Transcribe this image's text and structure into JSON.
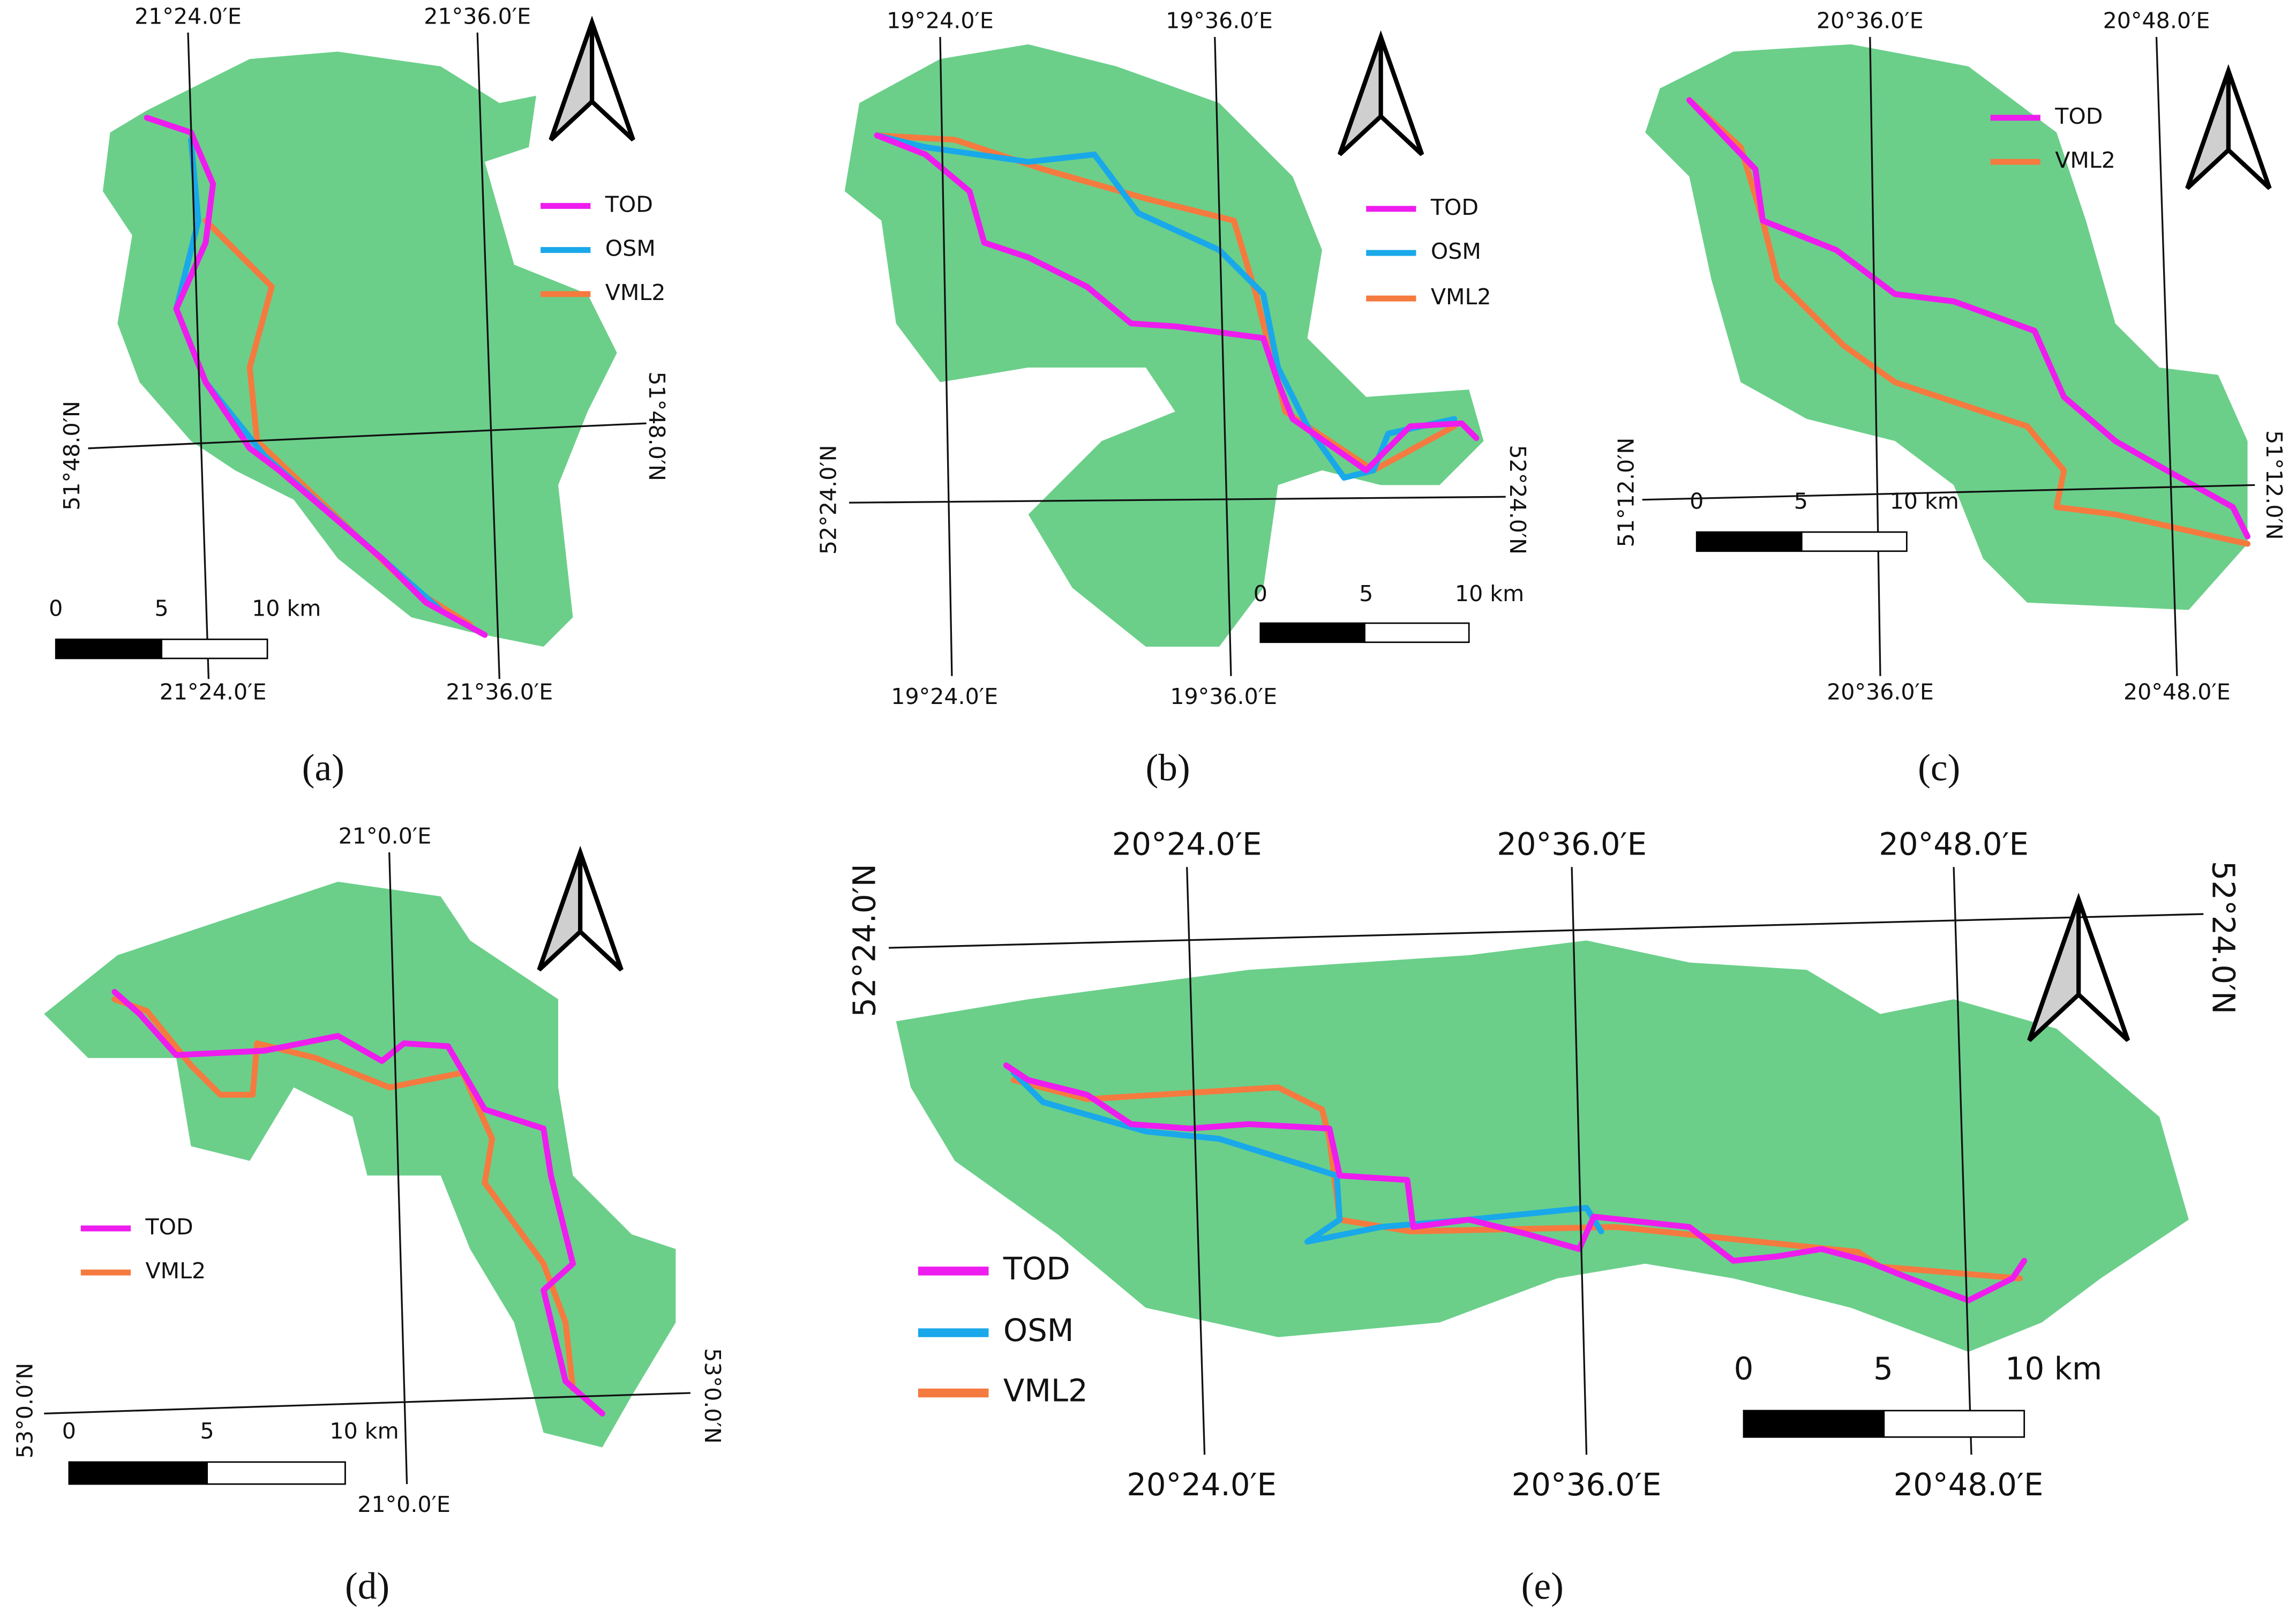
{
  "panels": [
    {
      "label": "(a)",
      "longitudes": [
        "21°24.0′E",
        "21°36.0′E"
      ],
      "latitude": "51°48.0′N",
      "legend": [
        "TOD",
        "OSM",
        "VML2"
      ],
      "scale": [
        "0",
        "5",
        "10 km"
      ]
    },
    {
      "label": "(b)",
      "longitudes": [
        "19°24.0′E",
        "19°36.0′E"
      ],
      "latitude": "52°24.0′N",
      "legend": [
        "TOD",
        "OSM",
        "VML2"
      ],
      "scale": [
        "0",
        "5",
        "10 km"
      ]
    },
    {
      "label": "(c)",
      "longitudes": [
        "20°36.0′E",
        "20°48.0′E"
      ],
      "latitude": "51°12.0′N",
      "legend": [
        "TOD",
        "VML2"
      ],
      "scale": [
        "0",
        "5",
        "10 km"
      ]
    },
    {
      "label": "(d)",
      "longitudes": [
        "21°0.0′E"
      ],
      "latitude": "53°0.0′N",
      "legend": [
        "TOD",
        "VML2"
      ],
      "scale": [
        "0",
        "5",
        "10 km"
      ]
    },
    {
      "label": "(e)",
      "longitudes": [
        "20°24.0′E",
        "20°36.0′E",
        "20°48.0′E"
      ],
      "latitude": "52°24.0′N",
      "legend": [
        "TOD",
        "OSM",
        "VML2"
      ],
      "scale": [
        "0",
        "5",
        "10 km"
      ]
    }
  ]
}
